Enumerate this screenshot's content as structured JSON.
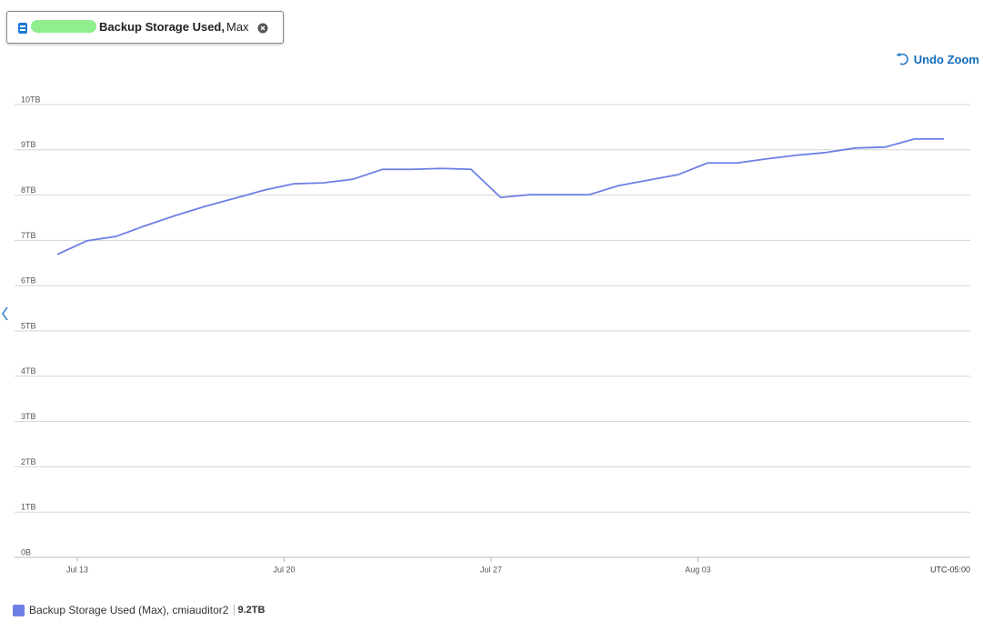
{
  "chart_data": {
    "type": "line",
    "pill": {
      "metric": "Backup Storage Used,",
      "aggregation": "Max"
    },
    "undo_zoom": "Undo Zoom",
    "timezone": "UTC-05:00",
    "x": [
      "Jul 12",
      "Jul 13",
      "Jul 14",
      "Jul 15",
      "Jul 16",
      "Jul 17",
      "Jul 18",
      "Jul 19",
      "Jul 20",
      "Jul 21",
      "Jul 22",
      "Jul 23",
      "Jul 24",
      "Jul 25",
      "Jul 26",
      "Jul 27",
      "Jul 28",
      "Jul 29",
      "Jul 30",
      "Jul 31",
      "Aug 01",
      "Aug 02",
      "Aug 03",
      "Aug 04",
      "Aug 05",
      "Aug 06",
      "Aug 07",
      "Aug 08",
      "Aug 09",
      "Aug 10",
      "Aug 11"
    ],
    "series": [
      {
        "name": "Backup Storage Used (Max), cmiauditor2",
        "color": "#6d7fe4",
        "values": [
          6.69,
          6.99,
          7.09,
          7.33,
          7.55,
          7.75,
          7.93,
          8.11,
          8.25,
          8.27,
          8.35,
          8.57,
          8.57,
          8.59,
          8.57,
          7.95,
          8.01,
          8.01,
          8.01,
          8.21,
          8.33,
          8.45,
          8.71,
          8.71,
          8.8,
          8.88,
          8.94,
          9.04,
          9.06,
          9.24,
          9.24
        ]
      }
    ],
    "legend_value": "9.2TB",
    "xticks": [
      "Jul 13",
      "Jul 20",
      "Jul 27",
      "Aug 03"
    ],
    "ylim": [
      0,
      10
    ],
    "yticks": [
      {
        "value": 0,
        "label": "0B"
      },
      {
        "value": 1,
        "label": "1TB"
      },
      {
        "value": 2,
        "label": "2TB"
      },
      {
        "value": 3,
        "label": "3TB"
      },
      {
        "value": 4,
        "label": "4TB"
      },
      {
        "value": 5,
        "label": "5TB"
      },
      {
        "value": 6,
        "label": "6TB"
      },
      {
        "value": 7,
        "label": "7TB"
      },
      {
        "value": 8,
        "label": "8TB"
      },
      {
        "value": 9,
        "label": "9TB"
      },
      {
        "value": 10,
        "label": "10TB"
      }
    ],
    "grid": true
  }
}
